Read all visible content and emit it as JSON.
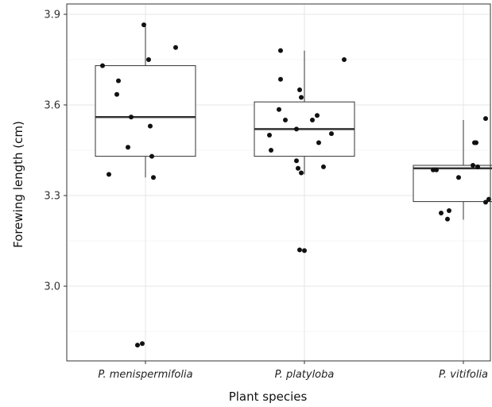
{
  "chart_data": {
    "type": "box",
    "title": "",
    "xlabel": "Plant species",
    "ylabel": "Forewing length (cm)",
    "categories": [
      "P. menispermifolia",
      "P. platyloba",
      "P. vitifolia"
    ],
    "y_ticks": [
      "3.0",
      "3.3",
      "3.6",
      "3.9"
    ],
    "y_tick_values": [
      3.0,
      3.3,
      3.6,
      3.9
    ],
    "ylim": [
      2.78,
      3.92
    ],
    "grid": true,
    "colors": {
      "box_fill": "#ffffff",
      "box_stroke": "#333333",
      "median": "#333333",
      "point": "#111111",
      "grid_major": "#e6e6e6",
      "grid_minor": "#f3f3f3",
      "panel_border": "#333333"
    },
    "boxes": [
      {
        "category": "P. menispermifolia",
        "q1": 3.43,
        "median": 3.56,
        "q3": 3.73,
        "whisker_low": 3.36,
        "whisker_high": 3.87
      },
      {
        "category": "P. platyloba",
        "q1": 3.43,
        "median": 3.52,
        "q3": 3.61,
        "whisker_low": 3.37,
        "whisker_high": 3.78
      },
      {
        "category": "P. vitifolia",
        "q1": 3.28,
        "median": 3.39,
        "q3": 3.4,
        "whisker_low": 3.22,
        "whisker_high": 3.55
      }
    ],
    "points": [
      {
        "category": "P. menispermifolia",
        "jitter": -0.01,
        "value": 3.865
      },
      {
        "category": "P. menispermifolia",
        "jitter": 0.19,
        "value": 3.79
      },
      {
        "category": "P. menispermifolia",
        "jitter": 0.02,
        "value": 3.75
      },
      {
        "category": "P. menispermifolia",
        "jitter": -0.27,
        "value": 3.73
      },
      {
        "category": "P. menispermifolia",
        "jitter": -0.17,
        "value": 3.68
      },
      {
        "category": "P. menispermifolia",
        "jitter": -0.18,
        "value": 3.635
      },
      {
        "category": "P. menispermifolia",
        "jitter": -0.09,
        "value": 3.56
      },
      {
        "category": "P. menispermifolia",
        "jitter": 0.03,
        "value": 3.53
      },
      {
        "category": "P. menispermifolia",
        "jitter": -0.11,
        "value": 3.46
      },
      {
        "category": "P. menispermifolia",
        "jitter": 0.04,
        "value": 3.43
      },
      {
        "category": "P. menispermifolia",
        "jitter": -0.23,
        "value": 3.37
      },
      {
        "category": "P. menispermifolia",
        "jitter": 0.05,
        "value": 3.36
      },
      {
        "category": "P. menispermifolia",
        "jitter": -0.05,
        "value": 2.805
      },
      {
        "category": "P. menispermifolia",
        "jitter": -0.02,
        "value": 2.81
      },
      {
        "category": "P. platyloba",
        "jitter": -0.15,
        "value": 3.78
      },
      {
        "category": "P. platyloba",
        "jitter": 0.25,
        "value": 3.75
      },
      {
        "category": "P. platyloba",
        "jitter": -0.15,
        "value": 3.685
      },
      {
        "category": "P. platyloba",
        "jitter": -0.03,
        "value": 3.65
      },
      {
        "category": "P. platyloba",
        "jitter": -0.02,
        "value": 3.625
      },
      {
        "category": "P. platyloba",
        "jitter": -0.16,
        "value": 3.585
      },
      {
        "category": "P. platyloba",
        "jitter": 0.08,
        "value": 3.565
      },
      {
        "category": "P. platyloba",
        "jitter": -0.12,
        "value": 3.55
      },
      {
        "category": "P. platyloba",
        "jitter": 0.05,
        "value": 3.55
      },
      {
        "category": "P. platyloba",
        "jitter": -0.05,
        "value": 3.52
      },
      {
        "category": "P. platyloba",
        "jitter": 0.17,
        "value": 3.505
      },
      {
        "category": "P. platyloba",
        "jitter": -0.22,
        "value": 3.5
      },
      {
        "category": "P. platyloba",
        "jitter": 0.09,
        "value": 3.475
      },
      {
        "category": "P. platyloba",
        "jitter": -0.21,
        "value": 3.45
      },
      {
        "category": "P. platyloba",
        "jitter": -0.05,
        "value": 3.415
      },
      {
        "category": "P. platyloba",
        "jitter": 0.12,
        "value": 3.395
      },
      {
        "category": "P. platyloba",
        "jitter": -0.04,
        "value": 3.39
      },
      {
        "category": "P. platyloba",
        "jitter": -0.02,
        "value": 3.375
      },
      {
        "category": "P. platyloba",
        "jitter": -0.03,
        "value": 3.12
      },
      {
        "category": "P. platyloba",
        "jitter": 0.0,
        "value": 3.118
      },
      {
        "category": "P. vitifolia",
        "jitter": 0.14,
        "value": 3.555
      },
      {
        "category": "P. vitifolia",
        "jitter": 0.07,
        "value": 3.475
      },
      {
        "category": "P. vitifolia",
        "jitter": 0.08,
        "value": 3.475
      },
      {
        "category": "P. vitifolia",
        "jitter": 0.06,
        "value": 3.4
      },
      {
        "category": "P. vitifolia",
        "jitter": 0.09,
        "value": 3.395
      },
      {
        "category": "P. vitifolia",
        "jitter": -0.19,
        "value": 3.385
      },
      {
        "category": "P. vitifolia",
        "jitter": -0.17,
        "value": 3.385
      },
      {
        "category": "P. vitifolia",
        "jitter": -0.03,
        "value": 3.36
      },
      {
        "category": "P. vitifolia",
        "jitter": 0.16,
        "value": 3.288
      },
      {
        "category": "P. vitifolia",
        "jitter": 0.14,
        "value": 3.278
      },
      {
        "category": "P. vitifolia",
        "jitter": -0.09,
        "value": 3.25
      },
      {
        "category": "P. vitifolia",
        "jitter": -0.14,
        "value": 3.242
      },
      {
        "category": "P. vitifolia",
        "jitter": -0.1,
        "value": 3.222
      }
    ]
  }
}
